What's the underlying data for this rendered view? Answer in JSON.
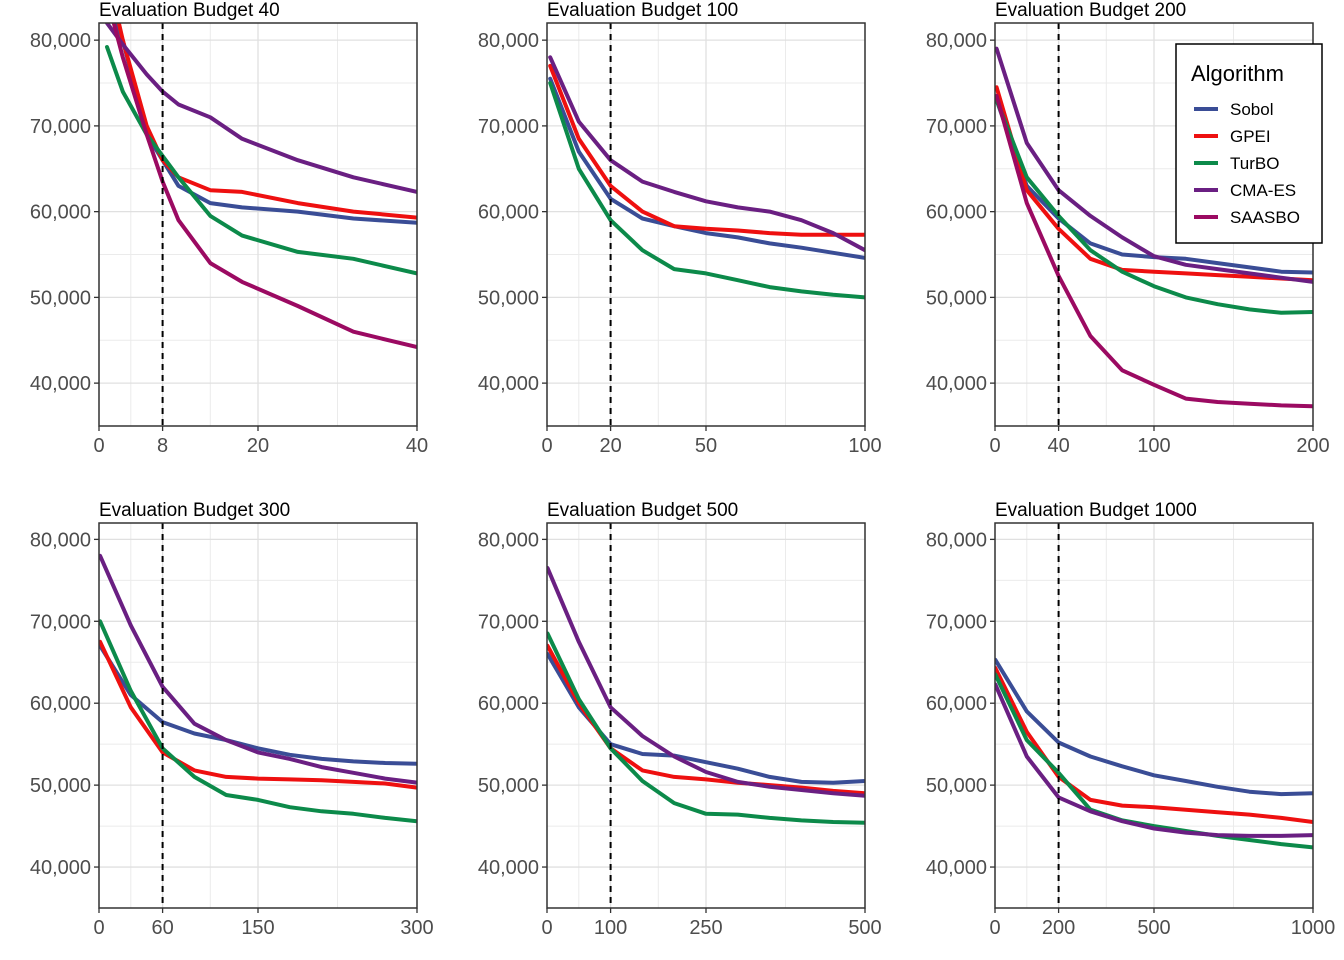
{
  "chart_data": [
    {
      "type": "line",
      "title": "Evaluation Budget 40",
      "xlim": [
        0,
        40
      ],
      "ylim": [
        35000,
        82000
      ],
      "x_ticks": [
        0,
        8,
        20,
        40
      ],
      "x_tick_labels": [
        "0",
        "8",
        "20",
        "40"
      ],
      "y_ticks": [
        40000,
        50000,
        60000,
        70000,
        80000
      ],
      "y_tick_labels": [
        "40,000",
        "50,000",
        "60,000",
        "70,000",
        "80,000"
      ],
      "vline": 8,
      "series": [
        {
          "name": "Sobol",
          "x": [
            1,
            3,
            6,
            8,
            10,
            14,
            18,
            25,
            32,
            40
          ],
          "values": [
            85000,
            80000,
            69000,
            66000,
            63000,
            61000,
            60500,
            60000,
            59200,
            58700
          ]
        },
        {
          "name": "GPEI",
          "x": [
            1,
            3,
            6,
            8,
            10,
            14,
            18,
            25,
            32,
            40
          ],
          "values": [
            88000,
            80000,
            70000,
            66000,
            64000,
            62500,
            62300,
            61000,
            60000,
            59300
          ]
        },
        {
          "name": "TurBO",
          "x": [
            1,
            3,
            6,
            8,
            10,
            14,
            18,
            25,
            32,
            40
          ],
          "values": [
            79200,
            74000,
            69000,
            66500,
            64000,
            59500,
            57200,
            55300,
            54500,
            52800
          ]
        },
        {
          "name": "CMA-ES",
          "x": [
            1,
            3,
            6,
            8,
            10,
            14,
            18,
            25,
            32,
            40
          ],
          "values": [
            82000,
            79500,
            76000,
            74000,
            72500,
            71000,
            68500,
            66000,
            64000,
            62300
          ]
        },
        {
          "name": "SAASBO",
          "x": [
            1,
            3,
            6,
            8,
            10,
            14,
            18,
            25,
            32,
            40
          ],
          "values": [
            85000,
            78000,
            69000,
            63500,
            59000,
            54000,
            51800,
            49000,
            46000,
            44200
          ]
        }
      ]
    },
    {
      "type": "line",
      "title": "Evaluation Budget 100",
      "xlim": [
        0,
        100
      ],
      "ylim": [
        35000,
        82000
      ],
      "x_ticks": [
        0,
        20,
        50,
        100
      ],
      "x_tick_labels": [
        "0",
        "20",
        "50",
        "100"
      ],
      "y_ticks": [
        40000,
        50000,
        60000,
        70000,
        80000
      ],
      "y_tick_labels": [
        "40,000",
        "50,000",
        "60,000",
        "70,000",
        "80,000"
      ],
      "vline": 20,
      "series": [
        {
          "name": "Sobol",
          "x": [
            1,
            10,
            20,
            30,
            40,
            50,
            60,
            70,
            80,
            90,
            100
          ],
          "values": [
            75500,
            67000,
            61500,
            59200,
            58300,
            57500,
            57000,
            56300,
            55800,
            55200,
            54600
          ]
        },
        {
          "name": "GPEI",
          "x": [
            1,
            10,
            20,
            30,
            40,
            50,
            60,
            70,
            80,
            90,
            100
          ],
          "values": [
            77000,
            68500,
            63000,
            60000,
            58300,
            58000,
            57800,
            57500,
            57300,
            57300,
            57300
          ]
        },
        {
          "name": "TurBO",
          "x": [
            1,
            10,
            20,
            30,
            40,
            50,
            60,
            70,
            80,
            90,
            100
          ],
          "values": [
            75000,
            65000,
            59000,
            55500,
            53300,
            52800,
            52000,
            51200,
            50700,
            50300,
            50000
          ]
        },
        {
          "name": "CMA-ES",
          "x": [
            1,
            10,
            20,
            30,
            40,
            50,
            60,
            70,
            80,
            90,
            100
          ],
          "values": [
            78000,
            70500,
            66000,
            63500,
            62300,
            61200,
            60500,
            60000,
            59000,
            57500,
            55500
          ]
        }
      ]
    },
    {
      "type": "line",
      "title": "Evaluation Budget 200",
      "xlim": [
        0,
        200
      ],
      "ylim": [
        35000,
        82000
      ],
      "x_ticks": [
        0,
        40,
        100,
        200
      ],
      "x_tick_labels": [
        "0",
        "40",
        "100",
        "200"
      ],
      "y_ticks": [
        40000,
        50000,
        60000,
        70000,
        80000
      ],
      "y_tick_labels": [
        "40,000",
        "50,000",
        "60,000",
        "70,000",
        "80,000"
      ],
      "vline": 40,
      "series": [
        {
          "name": "Sobol",
          "x": [
            1,
            20,
            40,
            60,
            80,
            100,
            120,
            140,
            160,
            180,
            200
          ],
          "values": [
            73000,
            63000,
            59200,
            56300,
            55000,
            54700,
            54500,
            54000,
            53500,
            53000,
            52900
          ]
        },
        {
          "name": "GPEI",
          "x": [
            1,
            20,
            40,
            60,
            80,
            100,
            120,
            140,
            160,
            180,
            200
          ],
          "values": [
            74500,
            62500,
            58000,
            54500,
            53200,
            53000,
            52800,
            52600,
            52400,
            52200,
            52000
          ]
        },
        {
          "name": "TurBO",
          "x": [
            1,
            20,
            40,
            60,
            80,
            100,
            120,
            140,
            160,
            180,
            200
          ],
          "values": [
            73000,
            64000,
            59500,
            55500,
            53000,
            51300,
            50000,
            49200,
            48600,
            48200,
            48300
          ]
        },
        {
          "name": "CMA-ES",
          "x": [
            1,
            20,
            40,
            60,
            80,
            100,
            120,
            140,
            160,
            180,
            200
          ],
          "values": [
            79000,
            68000,
            62500,
            59500,
            57000,
            54800,
            53800,
            53300,
            52800,
            52300,
            51800
          ]
        },
        {
          "name": "SAASBO",
          "x": [
            1,
            20,
            40,
            60,
            80,
            100,
            120,
            140,
            160,
            180,
            200
          ],
          "values": [
            73500,
            61000,
            52500,
            45500,
            41500,
            39800,
            38200,
            37800,
            37600,
            37400,
            37300
          ]
        }
      ]
    },
    {
      "type": "line",
      "title": "Evaluation Budget 300",
      "xlim": [
        0,
        300
      ],
      "ylim": [
        35000,
        82000
      ],
      "x_ticks": [
        0,
        60,
        150,
        300
      ],
      "x_tick_labels": [
        "0",
        "60",
        "150",
        "300"
      ],
      "y_ticks": [
        40000,
        50000,
        60000,
        70000,
        80000
      ],
      "y_tick_labels": [
        "40,000",
        "50,000",
        "60,000",
        "70,000",
        "80,000"
      ],
      "vline": 60,
      "series": [
        {
          "name": "Sobol",
          "x": [
            1,
            30,
            60,
            90,
            120,
            150,
            180,
            210,
            240,
            270,
            300
          ],
          "values": [
            67000,
            61000,
            57700,
            56300,
            55500,
            54500,
            53700,
            53200,
            52900,
            52700,
            52600
          ]
        },
        {
          "name": "GPEI",
          "x": [
            1,
            30,
            60,
            90,
            120,
            150,
            180,
            210,
            240,
            270,
            300
          ],
          "values": [
            67500,
            59500,
            54000,
            51800,
            51000,
            50800,
            50700,
            50600,
            50400,
            50200,
            49700
          ]
        },
        {
          "name": "TurBO",
          "x": [
            1,
            30,
            60,
            90,
            120,
            150,
            180,
            210,
            240,
            270,
            300
          ],
          "values": [
            70000,
            61500,
            54500,
            51000,
            48800,
            48200,
            47300,
            46800,
            46500,
            46000,
            45600
          ]
        },
        {
          "name": "CMA-ES",
          "x": [
            1,
            30,
            60,
            90,
            120,
            150,
            180,
            210,
            240,
            270,
            300
          ],
          "values": [
            78000,
            69500,
            62000,
            57500,
            55500,
            54000,
            53200,
            52200,
            51500,
            50800,
            50300
          ]
        }
      ]
    },
    {
      "type": "line",
      "title": "Evaluation Budget 500",
      "xlim": [
        0,
        500
      ],
      "ylim": [
        35000,
        82000
      ],
      "x_ticks": [
        0,
        100,
        250,
        500
      ],
      "x_tick_labels": [
        "0",
        "100",
        "250",
        "500"
      ],
      "y_ticks": [
        40000,
        50000,
        60000,
        70000,
        80000
      ],
      "y_tick_labels": [
        "40,000",
        "50,000",
        "60,000",
        "70,000",
        "80,000"
      ],
      "vline": 100,
      "series": [
        {
          "name": "Sobol",
          "x": [
            1,
            50,
            100,
            150,
            200,
            250,
            300,
            350,
            400,
            450,
            500
          ],
          "values": [
            66000,
            59500,
            55000,
            53800,
            53600,
            52800,
            52000,
            51000,
            50400,
            50300,
            50500
          ]
        },
        {
          "name": "GPEI",
          "x": [
            1,
            50,
            100,
            150,
            200,
            250,
            300,
            350,
            400,
            450,
            500
          ],
          "values": [
            67000,
            60000,
            54500,
            51800,
            51000,
            50700,
            50300,
            50000,
            49700,
            49300,
            49000
          ]
        },
        {
          "name": "TurBO",
          "x": [
            1,
            50,
            100,
            150,
            200,
            250,
            300,
            350,
            400,
            450,
            500
          ],
          "values": [
            68500,
            60500,
            54500,
            50500,
            47800,
            46500,
            46400,
            46000,
            45700,
            45500,
            45400
          ]
        },
        {
          "name": "CMA-ES",
          "x": [
            1,
            50,
            100,
            150,
            200,
            250,
            300,
            350,
            400,
            450,
            500
          ],
          "values": [
            76500,
            67500,
            59500,
            56000,
            53500,
            51600,
            50400,
            49800,
            49400,
            49000,
            48700
          ]
        }
      ]
    },
    {
      "type": "line",
      "title": "Evaluation Budget 1000",
      "xlim": [
        0,
        1000
      ],
      "ylim": [
        35000,
        82000
      ],
      "x_ticks": [
        0,
        200,
        500,
        1000
      ],
      "x_tick_labels": [
        "0",
        "200",
        "500",
        "1000"
      ],
      "y_ticks": [
        40000,
        50000,
        60000,
        70000,
        80000
      ],
      "y_tick_labels": [
        "40,000",
        "50,000",
        "60,000",
        "70,000",
        "80,000"
      ],
      "vline": 200,
      "series": [
        {
          "name": "Sobol",
          "x": [
            1,
            100,
            200,
            300,
            400,
            500,
            600,
            700,
            800,
            900,
            1000
          ],
          "values": [
            65300,
            59000,
            55200,
            53500,
            52300,
            51200,
            50500,
            49800,
            49200,
            48900,
            49000
          ]
        },
        {
          "name": "GPEI",
          "x": [
            1,
            100,
            200,
            300,
            400,
            500,
            600,
            700,
            800,
            900,
            1000
          ],
          "values": [
            64300,
            56500,
            51000,
            48200,
            47500,
            47300,
            47000,
            46700,
            46400,
            46000,
            45500
          ]
        },
        {
          "name": "TurBO",
          "x": [
            1,
            100,
            200,
            300,
            400,
            500,
            600,
            700,
            800,
            900,
            1000
          ],
          "values": [
            63500,
            55500,
            51500,
            47000,
            45700,
            45000,
            44400,
            43800,
            43300,
            42800,
            42400
          ]
        },
        {
          "name": "CMA-ES",
          "x": [
            1,
            100,
            200,
            300,
            400,
            500,
            600,
            700,
            800,
            900,
            1000
          ],
          "values": [
            62300,
            53500,
            48500,
            46800,
            45600,
            44700,
            44200,
            43900,
            43800,
            43800,
            43900
          ]
        }
      ]
    }
  ],
  "legend": {
    "title": "Algorithm",
    "items": [
      {
        "name": "Sobol",
        "color": "#3a4d96"
      },
      {
        "name": "GPEI",
        "color": "#ee1010"
      },
      {
        "name": "TurBO",
        "color": "#0c8a4a"
      },
      {
        "name": "CMA-ES",
        "color": "#6a1f82"
      },
      {
        "name": "SAASBO",
        "color": "#9b0a62"
      }
    ]
  }
}
